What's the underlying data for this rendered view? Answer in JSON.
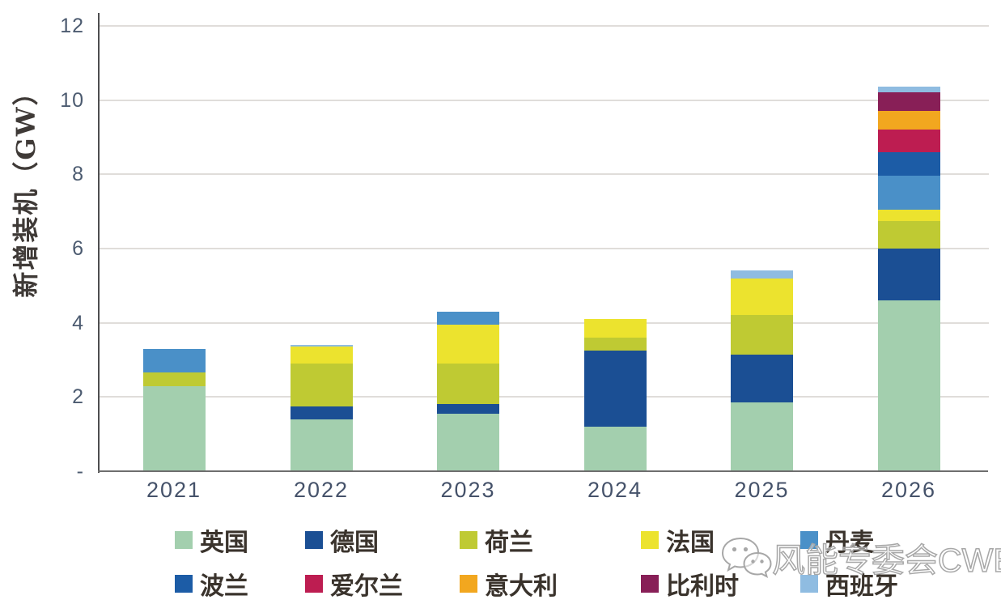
{
  "colors": {
    "grid": "#e0ddda",
    "axis_y": "#4e4e50",
    "axis_x": "#6e6e6e",
    "tick_text": "#4c5b70",
    "year_text": "#45526a",
    "ylabel_text": "#3f3a37",
    "legend_text": "#3a332c",
    "watermark": "#a7a7a7"
  },
  "watermark": {
    "icon": "wechat-icon",
    "text": "风能专委会CWEA"
  },
  "chart_data": {
    "type": "bar",
    "stacked": true,
    "title": "",
    "xlabel": "",
    "ylabel": "新增装机（GW）",
    "ylim": [
      0,
      12
    ],
    "grid": true,
    "legend_position": "bottom-two-rows",
    "categories": [
      "2021",
      "2022",
      "2023",
      "2024",
      "2025",
      "2026"
    ],
    "y_ticks": [
      {
        "value": 12,
        "label": "12"
      },
      {
        "value": 10,
        "label": "10"
      },
      {
        "value": 8,
        "label": "8"
      },
      {
        "value": 6,
        "label": "6"
      },
      {
        "value": 4,
        "label": "4"
      },
      {
        "value": 2,
        "label": "2"
      },
      {
        "value": 0,
        "label": "-"
      }
    ],
    "series": [
      {
        "name": "英国",
        "color": "#a3cfae",
        "values": [
          2.3,
          1.4,
          1.55,
          1.2,
          1.85,
          4.6
        ]
      },
      {
        "name": "德国",
        "color": "#1b4f94",
        "values": [
          0,
          0.35,
          0.25,
          2.05,
          1.3,
          1.4
        ]
      },
      {
        "name": "荷兰",
        "color": "#bfca33",
        "values": [
          0.35,
          1.15,
          1.1,
          0.35,
          1.05,
          0.75
        ]
      },
      {
        "name": "法国",
        "color": "#ece32e",
        "values": [
          0,
          0.45,
          1.05,
          0.5,
          1.0,
          0.3
        ]
      },
      {
        "name": "丹麦",
        "color": "#4a90c8",
        "values": [
          0.65,
          0,
          0.35,
          0,
          0,
          0.9
        ]
      },
      {
        "name": "波兰",
        "color": "#1c5ca6",
        "values": [
          0,
          0,
          0,
          0,
          0,
          0.65
        ]
      },
      {
        "name": "爱尔兰",
        "color": "#bd1d51",
        "values": [
          0,
          0,
          0,
          0,
          0,
          0.6
        ]
      },
      {
        "name": "意大利",
        "color": "#f2a71f",
        "values": [
          0,
          0,
          0,
          0,
          0,
          0.5
        ]
      },
      {
        "name": "比利时",
        "color": "#881f57",
        "values": [
          0,
          0,
          0,
          0,
          0,
          0.5
        ]
      },
      {
        "name": "西班牙",
        "color": "#8fbce1",
        "values": [
          0,
          0.05,
          0,
          0,
          0.2,
          0.15
        ]
      }
    ]
  }
}
